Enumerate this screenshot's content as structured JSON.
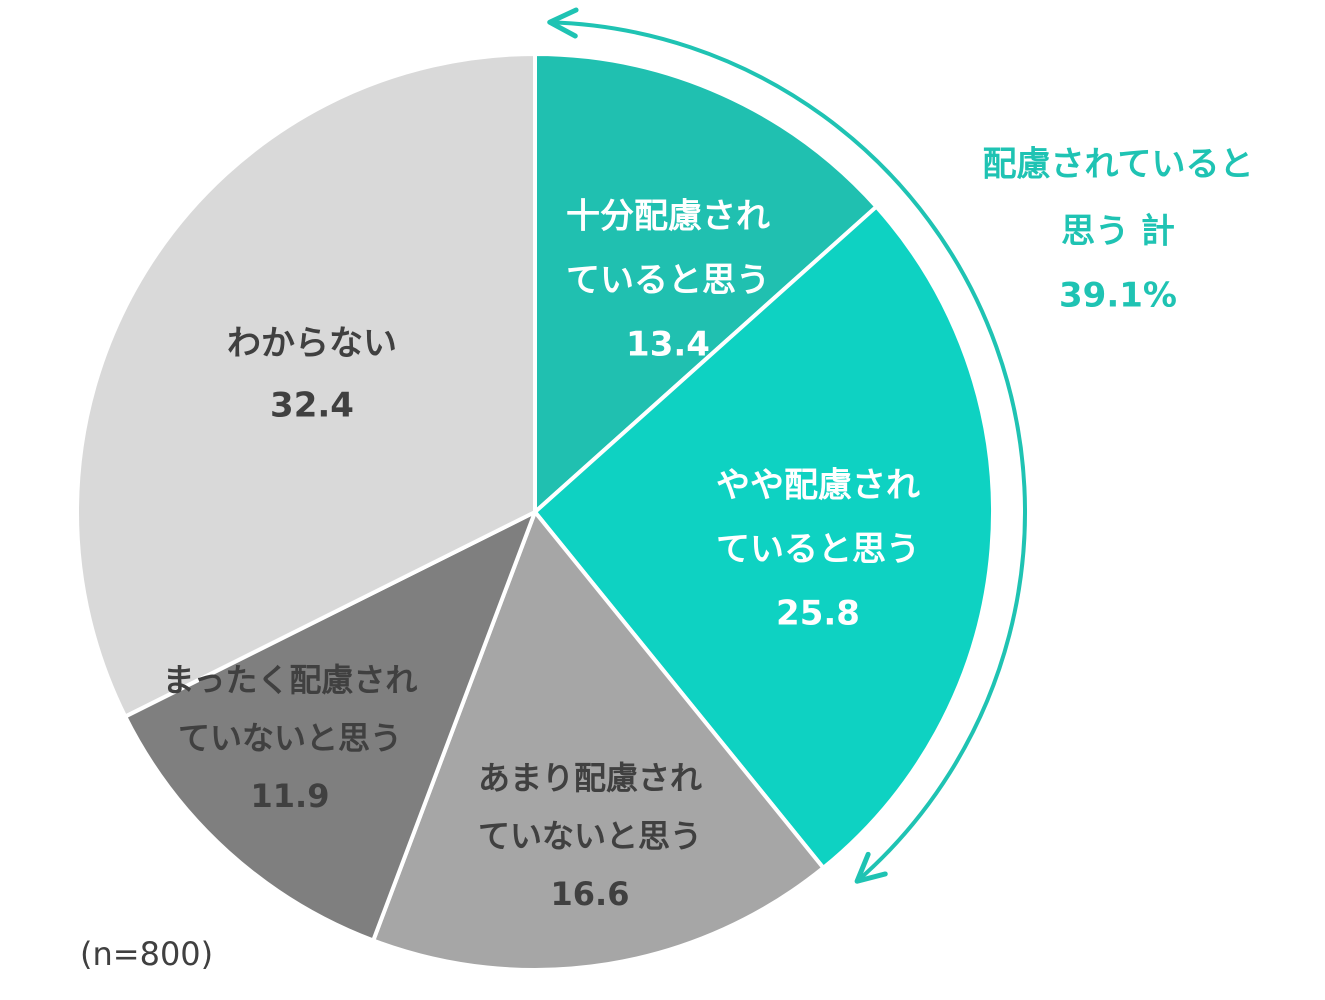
{
  "chart_data": {
    "type": "pie",
    "start_angle": 0,
    "direction": "clockwise",
    "slices": [
      {
        "id": "juubun",
        "label_lines": [
          "十分配慮され",
          "ていると思う"
        ],
        "value": 13.4,
        "value_label": "13.4",
        "color": "#20c0b0",
        "text_color": "#ffffff"
      },
      {
        "id": "yaya",
        "label_lines": [
          "やや配慮され",
          "ていると思う"
        ],
        "value": 25.8,
        "value_label": "25.8",
        "color": "#0ed2c2",
        "text_color": "#ffffff"
      },
      {
        "id": "amari",
        "label_lines": [
          "あまり配慮され",
          "ていないと思う"
        ],
        "value": 16.6,
        "value_label": "16.6",
        "color": "#a6a6a6",
        "text_color": "#404040"
      },
      {
        "id": "mattaku",
        "label_lines": [
          "まったく配慮され",
          "ていないと思う"
        ],
        "value": 11.9,
        "value_label": "11.9",
        "color": "#7f7f7f",
        "text_color": "#404040"
      },
      {
        "id": "wakaranai",
        "label_lines": [
          "わからない"
        ],
        "value": 32.4,
        "value_label": "32.4",
        "color": "#d9d9d9",
        "text_color": "#404040"
      }
    ],
    "callout": {
      "lines": [
        "配慮されていると",
        "思う 計",
        "39.1%"
      ],
      "value": 39.1,
      "color": "#1fc3b3"
    },
    "sample_note": "(n=800)"
  }
}
